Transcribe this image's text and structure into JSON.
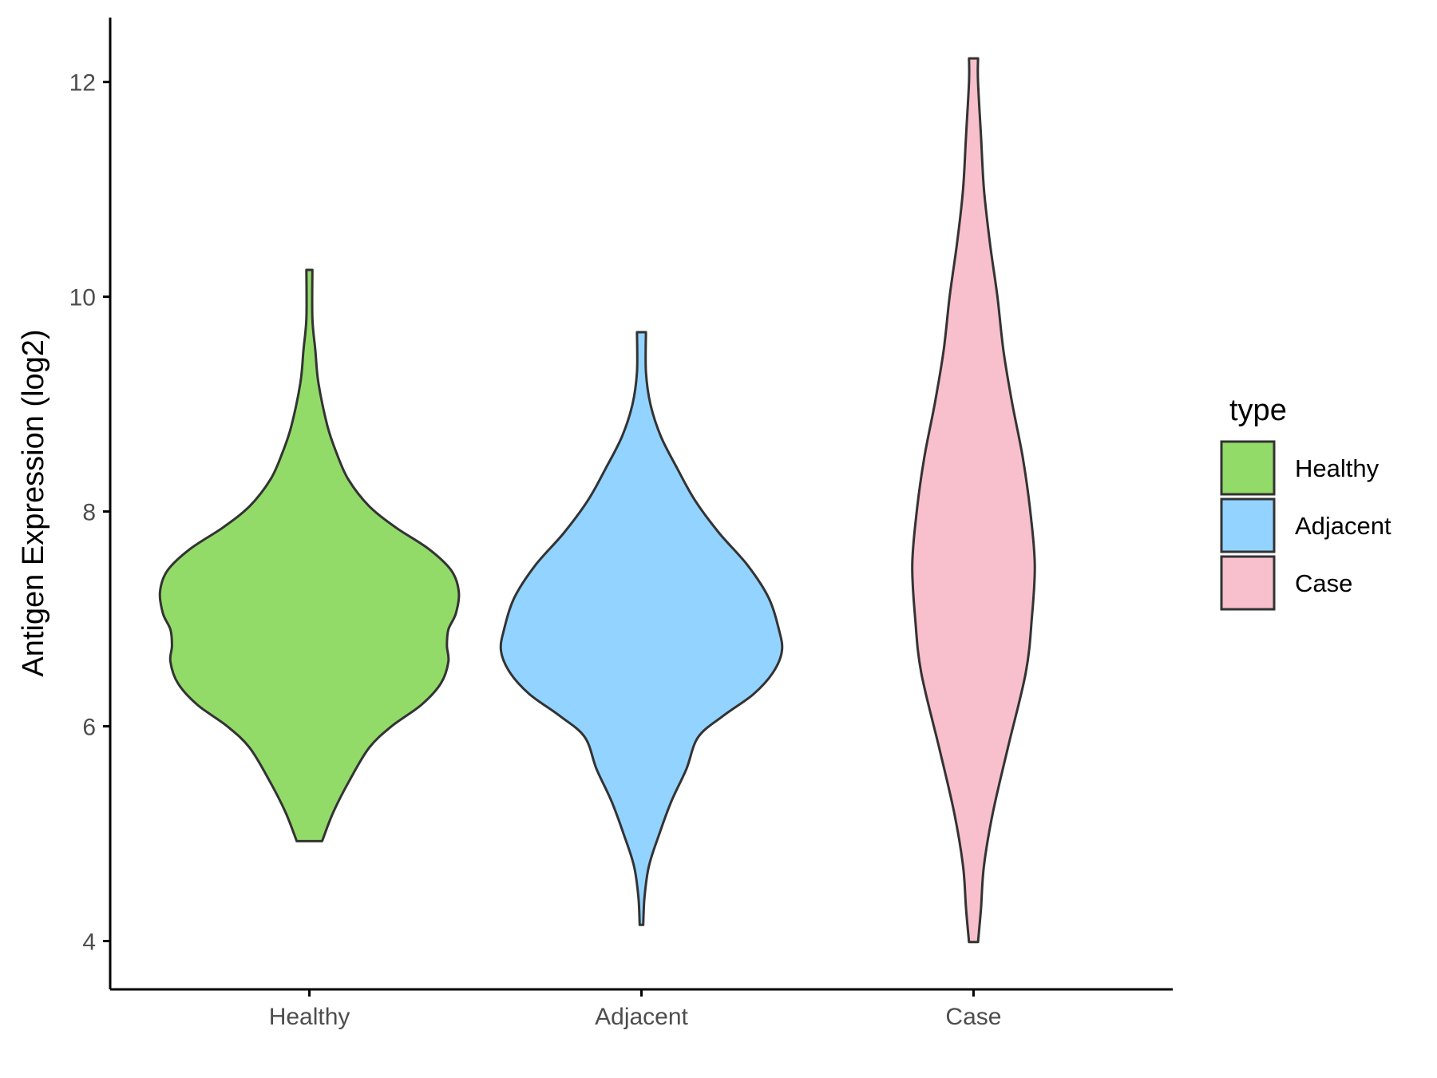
{
  "chart_data": {
    "type": "violin",
    "title": "",
    "xlabel": "",
    "ylabel": "Antigen Expression (log2)",
    "ylim": [
      3.55,
      12.6
    ],
    "yticks": [
      4,
      6,
      8,
      10,
      12
    ],
    "categories": [
      "Healthy",
      "Adjacent",
      "Case"
    ],
    "grid": false,
    "legend": {
      "title": "type",
      "position": "right",
      "entries": [
        "Healthy",
        "Adjacent",
        "Case"
      ]
    },
    "colors": {
      "Healthy": "#93DB69",
      "Adjacent": "#93D3FF",
      "Case": "#F7C0CC",
      "outline": "#333333"
    },
    "violins": [
      {
        "name": "Healthy",
        "profile": [
          [
            4.93,
            0.085
          ],
          [
            5.2,
            0.16
          ],
          [
            5.5,
            0.27
          ],
          [
            5.8,
            0.4
          ],
          [
            6.0,
            0.55
          ],
          [
            6.2,
            0.75
          ],
          [
            6.4,
            0.88
          ],
          [
            6.6,
            0.93
          ],
          [
            6.75,
            0.92
          ],
          [
            6.9,
            0.93
          ],
          [
            7.05,
            0.98
          ],
          [
            7.25,
            1.0
          ],
          [
            7.45,
            0.95
          ],
          [
            7.65,
            0.8
          ],
          [
            7.85,
            0.58
          ],
          [
            8.05,
            0.4
          ],
          [
            8.3,
            0.26
          ],
          [
            8.55,
            0.18
          ],
          [
            8.8,
            0.12
          ],
          [
            9.2,
            0.06
          ],
          [
            9.5,
            0.04
          ],
          [
            9.8,
            0.02
          ],
          [
            10.25,
            0.02
          ]
        ]
      },
      {
        "name": "Adjacent",
        "profile": [
          [
            4.15,
            0.012
          ],
          [
            4.4,
            0.02
          ],
          [
            4.7,
            0.05
          ],
          [
            5.0,
            0.12
          ],
          [
            5.3,
            0.2
          ],
          [
            5.6,
            0.3
          ],
          [
            5.9,
            0.38
          ],
          [
            6.1,
            0.55
          ],
          [
            6.3,
            0.75
          ],
          [
            6.5,
            0.88
          ],
          [
            6.7,
            0.94
          ],
          [
            6.9,
            0.92
          ],
          [
            7.2,
            0.85
          ],
          [
            7.5,
            0.71
          ],
          [
            7.8,
            0.52
          ],
          [
            8.1,
            0.36
          ],
          [
            8.4,
            0.24
          ],
          [
            8.7,
            0.13
          ],
          [
            9.0,
            0.06
          ],
          [
            9.3,
            0.03
          ],
          [
            9.67,
            0.03
          ]
        ]
      },
      {
        "name": "Case",
        "profile": [
          [
            3.99,
            0.03
          ],
          [
            4.3,
            0.05
          ],
          [
            4.7,
            0.07
          ],
          [
            5.2,
            0.13
          ],
          [
            5.8,
            0.23
          ],
          [
            6.5,
            0.35
          ],
          [
            7.0,
            0.39
          ],
          [
            7.5,
            0.41
          ],
          [
            8.0,
            0.38
          ],
          [
            8.5,
            0.33
          ],
          [
            9.0,
            0.26
          ],
          [
            9.5,
            0.2
          ],
          [
            10.0,
            0.16
          ],
          [
            10.5,
            0.11
          ],
          [
            11.0,
            0.07
          ],
          [
            11.5,
            0.05
          ],
          [
            12.0,
            0.03
          ],
          [
            12.22,
            0.03
          ]
        ]
      }
    ]
  }
}
